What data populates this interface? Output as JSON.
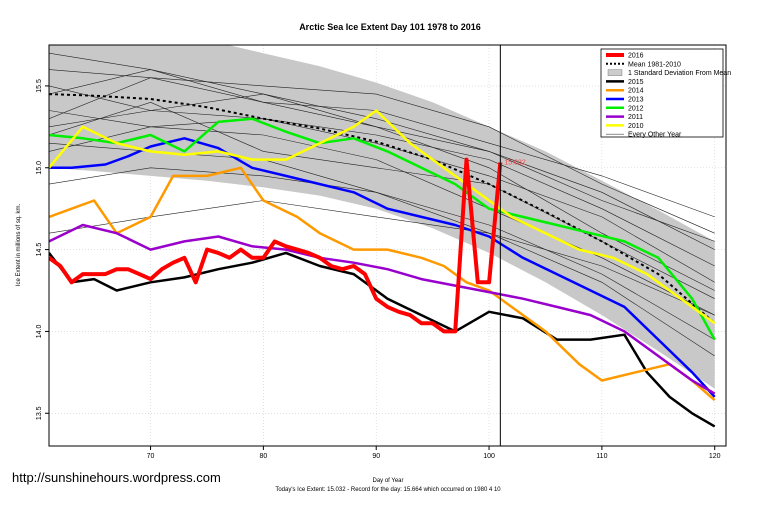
{
  "chart_data": {
    "type": "line",
    "title": "Arctic Sea Ice Extent Day 101 1978 to 2016",
    "xlabel": "Day of Year",
    "ylabel": "Ice Extent in millions of sq. km.",
    "xlim": [
      61,
      121
    ],
    "ylim": [
      13.3,
      15.75
    ],
    "x_ticks": [
      70,
      80,
      90,
      100,
      110,
      120
    ],
    "y_ticks": [
      13.5,
      14.0,
      14.5,
      15.0,
      15.5
    ],
    "y_tick_labels": [
      "13.5",
      "14.0",
      "14.5",
      "15.0",
      "15.5"
    ],
    "grid": true,
    "vline_day": 101,
    "annotation": {
      "text": "15.032",
      "x": 101,
      "y": 15.032,
      "color": "#ff4444"
    },
    "footer": "Today's Ice Extent: 15.032  -  Record for the day: 15.664 which occurred on 1980 4 10",
    "watermark": "http://sunshinehours.wordpress.com",
    "legend": [
      {
        "label": "2016",
        "color": "#ff0000",
        "style": "thick"
      },
      {
        "label": "Mean 1981-2010",
        "color": "#000000",
        "style": "dotted"
      },
      {
        "label": "1 Standard Deviation From Mean",
        "color": "#cccccc",
        "style": "box"
      },
      {
        "label": "2015",
        "color": "#000000",
        "style": "line"
      },
      {
        "label": "2014",
        "color": "#ff9900",
        "style": "line"
      },
      {
        "label": "2013",
        "color": "#0000ff",
        "style": "line"
      },
      {
        "label": "2012",
        "color": "#00ee00",
        "style": "line"
      },
      {
        "label": "2011",
        "color": "#9900cc",
        "style": "line"
      },
      {
        "label": "2010",
        "color": "#ffff00",
        "style": "line"
      },
      {
        "label": "Every Other Year",
        "color": "#444444",
        "style": "thin"
      }
    ],
    "band": {
      "x": [
        61,
        65,
        70,
        75,
        80,
        85,
        90,
        95,
        100,
        105,
        110,
        115,
        120
      ],
      "upper": [
        15.9,
        15.88,
        15.84,
        15.78,
        15.7,
        15.62,
        15.52,
        15.4,
        15.25,
        15.1,
        14.92,
        14.74,
        14.55
      ],
      "lower": [
        15.0,
        14.98,
        14.95,
        14.92,
        14.88,
        14.83,
        14.75,
        14.63,
        14.48,
        14.3,
        14.1,
        13.88,
        13.65
      ]
    },
    "series": [
      {
        "name": "Mean 1981-2010",
        "color": "#000000",
        "width": 2,
        "dash": "3,3",
        "x": [
          61,
          65,
          70,
          75,
          80,
          85,
          90,
          95,
          100,
          105,
          110,
          115,
          120
        ],
        "y": [
          15.45,
          15.44,
          15.42,
          15.37,
          15.3,
          15.24,
          15.16,
          15.05,
          14.9,
          14.73,
          14.55,
          14.35,
          14.05
        ]
      },
      {
        "name": "2015",
        "color": "#000000",
        "width": 2.5,
        "x": [
          61,
          63,
          65,
          67,
          70,
          73,
          76,
          79,
          82,
          85,
          88,
          91,
          94,
          97,
          100,
          103,
          106,
          109,
          112,
          114,
          116,
          118,
          120
        ],
        "y": [
          14.48,
          14.3,
          14.32,
          14.25,
          14.3,
          14.33,
          14.38,
          14.42,
          14.48,
          14.4,
          14.35,
          14.2,
          14.1,
          14.0,
          14.12,
          14.08,
          13.95,
          13.95,
          13.98,
          13.75,
          13.6,
          13.5,
          13.42
        ]
      },
      {
        "name": "2014",
        "color": "#ff9900",
        "width": 2.5,
        "x": [
          61,
          63,
          65,
          67,
          70,
          72,
          75,
          78,
          80,
          83,
          85,
          88,
          91,
          94,
          96,
          98,
          100,
          102,
          105,
          108,
          110,
          113,
          116,
          118,
          120
        ],
        "y": [
          14.7,
          14.75,
          14.8,
          14.6,
          14.7,
          14.95,
          14.95,
          15.0,
          14.8,
          14.7,
          14.6,
          14.5,
          14.5,
          14.45,
          14.4,
          14.3,
          14.25,
          14.15,
          14.0,
          13.8,
          13.7,
          13.75,
          13.8,
          13.7,
          13.58
        ]
      },
      {
        "name": "2013",
        "color": "#0000ff",
        "width": 2.5,
        "x": [
          61,
          63,
          66,
          68,
          70,
          73,
          76,
          79,
          82,
          85,
          88,
          91,
          94,
          97,
          100,
          103,
          106,
          109,
          112,
          115,
          118,
          120
        ],
        "y": [
          15.0,
          15.0,
          15.02,
          15.07,
          15.13,
          15.18,
          15.12,
          15.0,
          14.95,
          14.9,
          14.85,
          14.75,
          14.7,
          14.65,
          14.58,
          14.45,
          14.35,
          14.25,
          14.15,
          13.95,
          13.75,
          13.6
        ]
      },
      {
        "name": "2012",
        "color": "#00ee00",
        "width": 2.5,
        "x": [
          61,
          64,
          67,
          70,
          73,
          76,
          79,
          82,
          85,
          88,
          91,
          94,
          97,
          100,
          103,
          106,
          109,
          112,
          115,
          118,
          120
        ],
        "y": [
          15.2,
          15.18,
          15.15,
          15.2,
          15.1,
          15.28,
          15.3,
          15.22,
          15.15,
          15.18,
          15.1,
          15.0,
          14.9,
          14.75,
          14.7,
          14.65,
          14.6,
          14.55,
          14.45,
          14.2,
          13.95
        ]
      },
      {
        "name": "2011",
        "color": "#9900cc",
        "width": 2.5,
        "x": [
          61,
          64,
          67,
          70,
          73,
          76,
          79,
          82,
          85,
          88,
          91,
          94,
          97,
          100,
          103,
          106,
          109,
          112,
          115,
          118,
          120
        ],
        "y": [
          14.55,
          14.65,
          14.6,
          14.5,
          14.55,
          14.58,
          14.52,
          14.5,
          14.45,
          14.42,
          14.38,
          14.32,
          14.28,
          14.24,
          14.2,
          14.15,
          14.1,
          14.0,
          13.85,
          13.7,
          13.62
        ]
      },
      {
        "name": "2010",
        "color": "#ffff00",
        "width": 2.5,
        "x": [
          61,
          64,
          67,
          70,
          73,
          76,
          79,
          82,
          85,
          88,
          90,
          93,
          96,
          99,
          102,
          105,
          108,
          111,
          114,
          117,
          120
        ],
        "y": [
          15.0,
          15.25,
          15.15,
          15.1,
          15.08,
          15.1,
          15.05,
          15.05,
          15.15,
          15.25,
          15.35,
          15.15,
          15.0,
          14.85,
          14.7,
          14.6,
          14.5,
          14.45,
          14.35,
          14.2,
          14.05
        ]
      },
      {
        "name": "2016",
        "color": "#ff0000",
        "width": 4,
        "x": [
          61,
          62,
          63,
          64,
          65,
          66,
          67,
          68,
          69,
          70,
          71,
          72,
          73,
          74,
          75,
          76,
          77,
          78,
          79,
          80,
          81,
          82,
          83,
          84,
          85,
          86,
          87,
          88,
          89,
          90,
          91,
          92,
          93,
          94,
          95,
          96,
          97,
          98,
          99,
          100,
          101
        ],
        "y": [
          14.45,
          14.4,
          14.3,
          14.35,
          14.35,
          14.35,
          14.38,
          14.38,
          14.35,
          14.32,
          14.38,
          14.42,
          14.45,
          14.3,
          14.5,
          14.48,
          14.45,
          14.5,
          14.45,
          14.45,
          14.55,
          14.52,
          14.5,
          14.48,
          14.45,
          14.4,
          14.38,
          14.4,
          14.35,
          14.2,
          14.15,
          14.12,
          14.1,
          14.05,
          14.05,
          14.0,
          14.0,
          15.05,
          14.3,
          14.3,
          15.032
        ]
      }
    ],
    "background_years": [
      {
        "x": [
          61,
          70,
          80,
          90,
          100,
          110,
          120
        ],
        "y": [
          15.45,
          15.6,
          15.45,
          15.3,
          15.1,
          14.8,
          14.55
        ]
      },
      {
        "x": [
          61,
          70,
          80,
          90,
          100,
          110,
          120
        ],
        "y": [
          15.6,
          15.55,
          15.5,
          15.45,
          15.25,
          14.9,
          14.6
        ]
      },
      {
        "x": [
          61,
          70,
          80,
          90,
          100,
          110,
          120
        ],
        "y": [
          15.3,
          15.55,
          15.4,
          15.35,
          15.15,
          14.95,
          14.7
        ]
      },
      {
        "x": [
          61,
          70,
          80,
          90,
          100,
          110,
          120
        ],
        "y": [
          15.1,
          15.25,
          15.3,
          15.2,
          15.05,
          14.75,
          14.4
        ]
      },
      {
        "x": [
          61,
          70,
          80,
          90,
          100,
          110,
          120
        ],
        "y": [
          15.5,
          15.35,
          15.3,
          15.15,
          14.95,
          14.7,
          14.3
        ]
      },
      {
        "x": [
          61,
          70,
          80,
          90,
          100,
          110,
          120
        ],
        "y": [
          15.2,
          15.4,
          15.1,
          15.0,
          14.9,
          14.55,
          14.2
        ]
      },
      {
        "x": [
          61,
          70,
          80,
          90,
          100,
          110,
          120
        ],
        "y": [
          14.6,
          14.7,
          14.8,
          14.7,
          14.6,
          14.4,
          14.1
        ]
      },
      {
        "x": [
          61,
          70,
          80,
          90,
          100,
          110,
          120
        ],
        "y": [
          15.35,
          15.25,
          15.2,
          15.05,
          14.75,
          14.45,
          14.1
        ]
      },
      {
        "x": [
          61,
          70,
          80,
          90,
          100,
          110,
          120
        ],
        "y": [
          15.25,
          15.35,
          15.45,
          15.25,
          15.0,
          14.6,
          14.25
        ]
      },
      {
        "x": [
          61,
          70,
          80,
          90,
          100,
          110,
          120
        ],
        "y": [
          15.15,
          15.1,
          15.05,
          14.85,
          14.6,
          14.3,
          13.85
        ]
      },
      {
        "x": [
          61,
          70,
          80,
          90,
          100,
          110,
          120
        ],
        "y": [
          14.9,
          15.0,
          14.95,
          14.85,
          14.65,
          14.35,
          13.95
        ]
      },
      {
        "x": [
          61,
          70,
          80,
          90,
          100,
          110,
          120
        ],
        "y": [
          15.7,
          15.6,
          15.4,
          15.25,
          15.1,
          14.85,
          14.5
        ]
      }
    ]
  }
}
